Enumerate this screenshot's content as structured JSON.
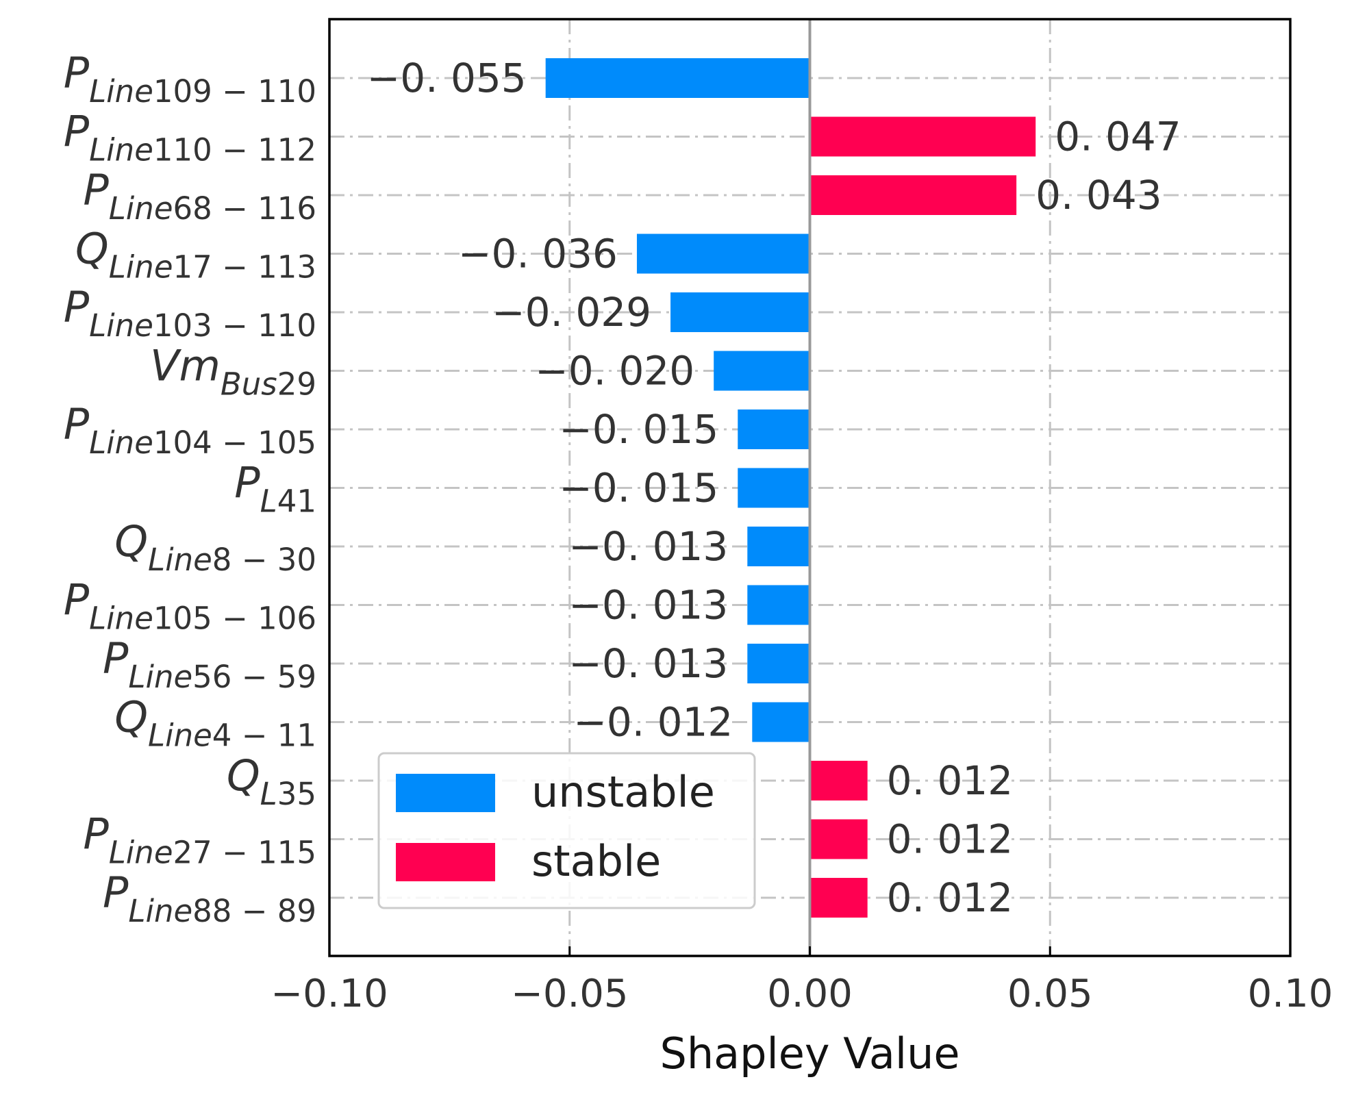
{
  "chart_data": {
    "type": "bar",
    "orientation": "horizontal",
    "xlabel": "Shapley Value",
    "xlim": [
      -0.1,
      0.1
    ],
    "xticks": [
      -0.1,
      -0.05,
      0.0,
      0.05,
      0.1
    ],
    "xtick_labels": [
      "−0.10",
      "−0.05",
      "0.00",
      "0.05",
      "0.10"
    ],
    "grid": true,
    "legend_position": "bottom-left",
    "series": [
      {
        "name": "unstable",
        "color": "#008bfb"
      },
      {
        "name": "stable",
        "color": "#ff0051"
      }
    ],
    "categories": [
      {
        "main": "P",
        "sub": [
          [
            "Line",
            "it"
          ],
          [
            "109",
            "rm"
          ],
          [
            " − 110",
            "rm"
          ]
        ]
      },
      {
        "main": "P",
        "sub": [
          [
            "Line",
            "it"
          ],
          [
            "110",
            "rm"
          ],
          [
            " − 112",
            "rm"
          ]
        ]
      },
      {
        "main": "P",
        "sub": [
          [
            "Line",
            "it"
          ],
          [
            "68",
            "rm"
          ],
          [
            " − 116",
            "rm"
          ]
        ]
      },
      {
        "main": "Q",
        "sub": [
          [
            "Line",
            "it"
          ],
          [
            "17",
            "rm"
          ],
          [
            " − 113",
            "rm"
          ]
        ]
      },
      {
        "main": "P",
        "sub": [
          [
            "Line",
            "it"
          ],
          [
            "103",
            "rm"
          ],
          [
            " − 110",
            "rm"
          ]
        ]
      },
      {
        "main": "Vm",
        "sub": [
          [
            "Bus",
            "it"
          ],
          [
            "29",
            "rm"
          ]
        ]
      },
      {
        "main": "P",
        "sub": [
          [
            "Line",
            "it"
          ],
          [
            "104",
            "rm"
          ],
          [
            " − 105",
            "rm"
          ]
        ]
      },
      {
        "main": "P",
        "sub": [
          [
            "L",
            "it"
          ],
          [
            "41",
            "rm"
          ]
        ]
      },
      {
        "main": "Q",
        "sub": [
          [
            "Line",
            "it"
          ],
          [
            "8",
            "rm"
          ],
          [
            " − 30",
            "rm"
          ]
        ]
      },
      {
        "main": "P",
        "sub": [
          [
            "Line",
            "it"
          ],
          [
            "105",
            "rm"
          ],
          [
            " − 106",
            "rm"
          ]
        ]
      },
      {
        "main": "P",
        "sub": [
          [
            "Line",
            "it"
          ],
          [
            "56",
            "rm"
          ],
          [
            " − 59",
            "rm"
          ]
        ]
      },
      {
        "main": "Q",
        "sub": [
          [
            "Line",
            "it"
          ],
          [
            "4",
            "rm"
          ],
          [
            " − 11",
            "rm"
          ]
        ]
      },
      {
        "main": "Q",
        "sub": [
          [
            "L",
            "it"
          ],
          [
            "35",
            "rm"
          ]
        ]
      },
      {
        "main": "P",
        "sub": [
          [
            "Line",
            "it"
          ],
          [
            "27",
            "rm"
          ],
          [
            " − 115",
            "rm"
          ]
        ]
      },
      {
        "main": "P",
        "sub": [
          [
            "Line",
            "it"
          ],
          [
            "88",
            "rm"
          ],
          [
            " − 89",
            "rm"
          ]
        ]
      }
    ],
    "values": [
      -0.055,
      0.047,
      0.043,
      -0.036,
      -0.029,
      -0.02,
      -0.015,
      -0.015,
      -0.013,
      -0.013,
      -0.013,
      -0.012,
      0.012,
      0.012,
      0.012
    ],
    "value_labels": [
      "−0. 055",
      "0. 047",
      "0. 043",
      "−0. 036",
      "−0. 029",
      "−0. 020",
      "−0. 015",
      "−0. 015",
      "−0. 013",
      "−0. 013",
      "−0. 013",
      "−0. 012",
      "0. 012",
      "0. 012",
      "0. 012"
    ]
  }
}
